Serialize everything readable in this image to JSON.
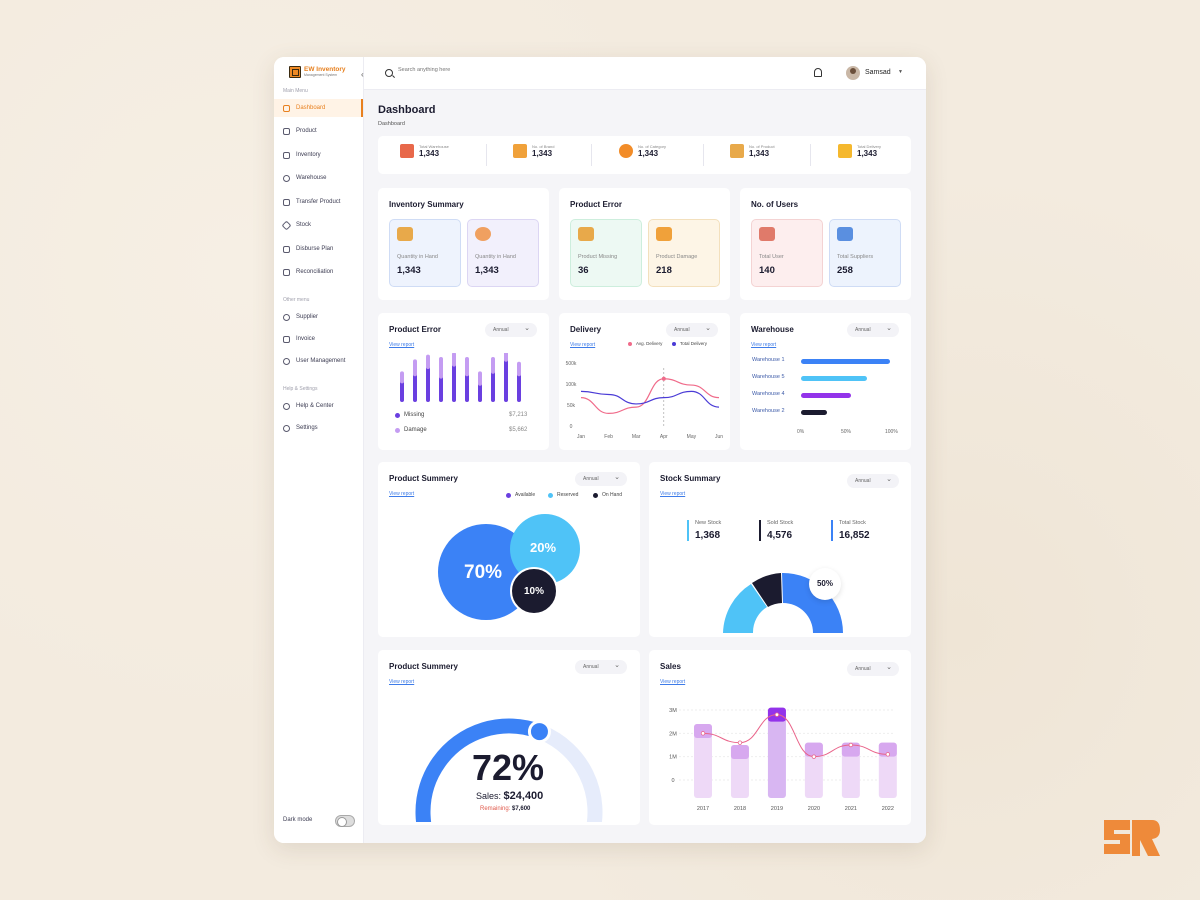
{
  "app": {
    "title": "EW Inventory",
    "subtitle": "Management System"
  },
  "sidebar": {
    "main_menu_title": "Main Menu",
    "items": [
      {
        "label": "Dashboard",
        "icon": "grid-icon",
        "active": true
      },
      {
        "label": "Product",
        "icon": "box-icon"
      },
      {
        "label": "Inventory",
        "icon": "inventory-icon"
      },
      {
        "label": "Warehouse",
        "icon": "location-icon"
      },
      {
        "label": "Transfer Product",
        "icon": "transfer-icon"
      },
      {
        "label": "Stock",
        "icon": "stock-icon"
      },
      {
        "label": "Disburse Plan",
        "icon": "plan-icon"
      },
      {
        "label": "Reconciliation",
        "icon": "reconcile-icon"
      }
    ],
    "other_menu_title": "Other menu",
    "other_items": [
      {
        "label": "Supplier",
        "icon": "user-icon"
      },
      {
        "label": "Invoice",
        "icon": "invoice-icon"
      },
      {
        "label": "User Management",
        "icon": "users-icon"
      }
    ],
    "help_title": "Help & Settings",
    "help_items": [
      {
        "label": "Help & Center",
        "icon": "help-icon"
      },
      {
        "label": "Settings",
        "icon": "gear-icon"
      }
    ],
    "dark_mode_label": "Dark mode",
    "dark_mode_on": false
  },
  "topbar": {
    "search_placeholder": "Search anything here",
    "user_name": "Samsad"
  },
  "page": {
    "title": "Dashboard",
    "breadcrumb": "Dashboard"
  },
  "stats": [
    {
      "label": "Total Warehouse",
      "value": "1,343",
      "color": "#e8684a"
    },
    {
      "label": "No. of Brand",
      "value": "1,343",
      "color": "#f0a13a"
    },
    {
      "label": "No. of Category",
      "value": "1,343",
      "color": "#f28c28"
    },
    {
      "label": "No. of Product",
      "value": "1,343",
      "color": "#e8a94a"
    },
    {
      "label": "Total Delivery",
      "value": "1,343",
      "color": "#f5b82e"
    }
  ],
  "inventory_summary": {
    "title": "Inventory Summary",
    "items": [
      {
        "label": "Quantity in Hand",
        "value": "1,343"
      },
      {
        "label": "Quantity in Hand",
        "value": "1,343"
      }
    ]
  },
  "product_error_summary": {
    "title": "Product Error",
    "items": [
      {
        "label": "Product Missing",
        "value": "36"
      },
      {
        "label": "Product Damage",
        "value": "218"
      }
    ]
  },
  "users": {
    "title": "No. of Users",
    "items": [
      {
        "label": "Total User",
        "value": "140"
      },
      {
        "label": "Total Suppliers",
        "value": "258"
      }
    ]
  },
  "product_error_chart": {
    "title": "Product Error",
    "link": "View report",
    "filter": "Annual",
    "legend": [
      {
        "label": "Missing",
        "amount": "$7,213",
        "color": "#6a3fe0"
      },
      {
        "label": "Damage",
        "amount": "$5,662",
        "color": "#c49cf2"
      }
    ]
  },
  "delivery": {
    "title": "Delivery",
    "link": "View report",
    "filter": "Annual",
    "legend": [
      {
        "label": "Avg. Delivery",
        "color": "#f06b8a"
      },
      {
        "label": "Total Delivery",
        "color": "#4a3bd6"
      }
    ]
  },
  "warehouse": {
    "title": "Warehouse",
    "link": "View report",
    "filter": "Annual"
  },
  "product_summary_1": {
    "title": "Product Summery",
    "link": "View report",
    "filter": "Annual",
    "legend": [
      {
        "label": "Available",
        "color": "#6a3fe0"
      },
      {
        "label": "Reserved",
        "color": "#4fc3f7"
      },
      {
        "label": "On Hand",
        "color": "#1b1b2f"
      }
    ]
  },
  "stock_summary": {
    "title": "Stock Summary",
    "link": "View report",
    "filter": "Annual",
    "items": [
      {
        "label": "New Stock",
        "value": "1,368",
        "color": "#4fc3f7"
      },
      {
        "label": "Sold Stock",
        "value": "4,576",
        "color": "#1b1b2f"
      },
      {
        "label": "Total Stock",
        "value": "16,852",
        "color": "#3b82f6"
      }
    ],
    "pct_label": "50%"
  },
  "product_summary_2": {
    "title": "Product Summery",
    "link": "View report",
    "filter": "Annual",
    "pct": "72%",
    "sales_label": "Sales:",
    "sales_value": "$24,400",
    "remaining_label": "Remaining:",
    "remaining_value": "$7,600",
    "progress": 0.72
  },
  "sales": {
    "title": "Sales",
    "link": "View report",
    "filter": "Annual"
  },
  "chart_data": [
    {
      "type": "bar",
      "title": "Product Error",
      "series": [
        {
          "name": "Missing",
          "values": [
            0.45,
            0.6,
            0.75,
            0.55,
            0.8,
            0.6,
            0.4,
            0.65,
            0.9,
            0.6
          ]
        },
        {
          "name": "Damage",
          "values": [
            0.25,
            0.35,
            0.3,
            0.45,
            0.3,
            0.4,
            0.3,
            0.35,
            0.25,
            0.3
          ]
        }
      ]
    },
    {
      "type": "line",
      "title": "Delivery",
      "x": [
        "Jan",
        "Feb",
        "Mar",
        "Apr",
        "May",
        "Jun"
      ],
      "yticks": [
        "500k",
        "100k",
        "50k",
        "0"
      ],
      "series": [
        {
          "name": "Avg. Delivery",
          "values": [
            0.45,
            0.2,
            0.3,
            0.75,
            0.65,
            0.45
          ]
        },
        {
          "name": "Total Delivery",
          "values": [
            0.55,
            0.5,
            0.35,
            0.45,
            0.55,
            0.3
          ]
        }
      ]
    },
    {
      "type": "bar",
      "title": "Warehouse",
      "categories": [
        "Warehouse 1",
        "Warehouse 5",
        "Warehouse 4",
        "Warehouse 2"
      ],
      "values": [
        95,
        70,
        53,
        28
      ],
      "xticks": [
        "0%",
        "50%",
        "100%"
      ],
      "colors": [
        "#3b82f6",
        "#4fc3f7",
        "#9333ea",
        "#1b1b2f"
      ]
    },
    {
      "type": "pie",
      "title": "Product Summery",
      "categories": [
        "Available",
        "Reserved",
        "On Hand"
      ],
      "values": [
        70,
        20,
        10
      ],
      "labels": [
        "70%",
        "20%",
        "10%"
      ]
    },
    {
      "type": "pie",
      "title": "Stock Summary",
      "categories": [
        "New Stock",
        "Sold Stock",
        "Total Stock"
      ],
      "values": [
        25,
        15,
        50
      ]
    },
    {
      "type": "bar",
      "title": "Sales",
      "categories": [
        "2017",
        "2018",
        "2019",
        "2020",
        "2021",
        "2022"
      ],
      "values": [
        2.4,
        1.5,
        3.1,
        1.6,
        1.6,
        1.6
      ],
      "line": [
        2.0,
        1.6,
        2.8,
        1.0,
        1.5,
        1.1
      ],
      "yticks": [
        "3M",
        "2M",
        "1M",
        "0"
      ],
      "ylim": [
        0,
        3
      ]
    }
  ]
}
